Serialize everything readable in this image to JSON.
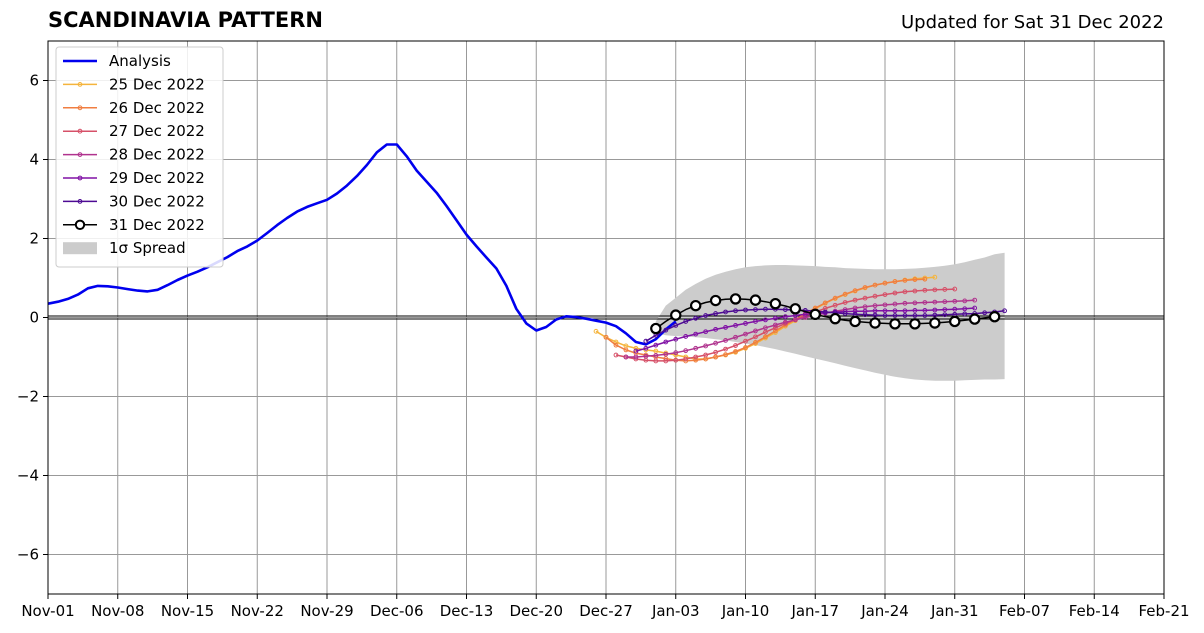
{
  "header": {
    "title": "SCANDINAVIA PATTERN",
    "subtitle": "Updated for Sat 31 Dec 2022"
  },
  "chart_data": {
    "type": "line",
    "xlim": [
      "2022-11-01",
      "2023-02-21"
    ],
    "ylim": [
      -7,
      7
    ],
    "grid": true,
    "legend_placement": "top-left",
    "x_ticks": [
      "2022-11-01",
      "2022-11-08",
      "2022-11-15",
      "2022-11-22",
      "2022-11-29",
      "2022-12-06",
      "2022-12-13",
      "2022-12-20",
      "2022-12-27",
      "2023-01-03",
      "2023-01-10",
      "2023-01-17",
      "2023-01-24",
      "2023-01-31",
      "2023-02-07",
      "2023-02-14",
      "2023-02-21"
    ],
    "x_tick_labels": [
      "Nov-01",
      "Nov-08",
      "Nov-15",
      "Nov-22",
      "Nov-29",
      "Dec-06",
      "Dec-13",
      "Dec-20",
      "Dec-27",
      "Jan-03",
      "Jan-10",
      "Jan-17",
      "Jan-24",
      "Jan-31",
      "Feb-07",
      "Feb-14",
      "Feb-21"
    ],
    "y_ticks": [
      -6,
      -4,
      -2,
      0,
      2,
      4,
      6
    ],
    "y_tick_labels": [
      "−6",
      "−4",
      "−2",
      "0",
      "2",
      "4",
      "6"
    ],
    "analysis": {
      "name": "Analysis",
      "color": "#0000ee",
      "start": "2022-11-01",
      "values": [
        0.35,
        0.4,
        0.47,
        0.58,
        0.74,
        0.8,
        0.79,
        0.76,
        0.72,
        0.68,
        0.66,
        0.7,
        0.82,
        0.95,
        1.06,
        1.16,
        1.27,
        1.4,
        1.53,
        1.68,
        1.8,
        1.95,
        2.14,
        2.34,
        2.52,
        2.68,
        2.8,
        2.89,
        2.98,
        3.14,
        3.34,
        3.58,
        3.86,
        4.18,
        4.38,
        4.38,
        4.08,
        3.72,
        3.44,
        3.16,
        2.82,
        2.46,
        2.1,
        1.8,
        1.52,
        1.24,
        0.8,
        0.22,
        -0.15,
        -0.33,
        -0.24,
        -0.05,
        0.03,
        0.01,
        -0.03,
        -0.08,
        -0.13,
        -0.22,
        -0.4,
        -0.62,
        -0.68,
        -0.55,
        -0.3,
        -0.1
      ]
    },
    "forecasts": [
      {
        "name": "25 Dec 2022",
        "color": "#f5b43c",
        "start": "2022-12-26",
        "values": [
          -0.35,
          -0.5,
          -0.62,
          -0.72,
          -0.78,
          -0.82,
          -0.85,
          -0.9,
          -0.95,
          -1.0,
          -1.05,
          -1.05,
          -1.0,
          -0.95,
          -0.88,
          -0.78,
          -0.66,
          -0.52,
          -0.38,
          -0.22,
          -0.08,
          0.08,
          0.22,
          0.36,
          0.48,
          0.58,
          0.67,
          0.75,
          0.82,
          0.87,
          0.91,
          0.95,
          0.98,
          1.0,
          1.02
        ]
      },
      {
        "name": "26 Dec 2022",
        "color": "#f07e41",
        "start": "2022-12-27",
        "values": [
          -0.5,
          -0.7,
          -0.82,
          -0.9,
          -0.95,
          -1.0,
          -1.04,
          -1.08,
          -1.1,
          -1.08,
          -1.05,
          -1.0,
          -0.94,
          -0.86,
          -0.76,
          -0.63,
          -0.49,
          -0.34,
          -0.19,
          -0.05,
          0.1,
          0.24,
          0.37,
          0.49,
          0.59,
          0.68,
          0.76,
          0.82,
          0.87,
          0.91,
          0.94,
          0.96,
          0.97
        ]
      },
      {
        "name": "27 Dec 2022",
        "color": "#d65068",
        "start": "2022-12-28",
        "values": [
          -0.95,
          -1.0,
          -1.05,
          -1.08,
          -1.1,
          -1.1,
          -1.08,
          -1.05,
          -1.0,
          -0.95,
          -0.88,
          -0.8,
          -0.71,
          -0.6,
          -0.49,
          -0.37,
          -0.26,
          -0.15,
          -0.05,
          0.05,
          0.14,
          0.23,
          0.31,
          0.38,
          0.44,
          0.49,
          0.54,
          0.58,
          0.62,
          0.65,
          0.67,
          0.69,
          0.7,
          0.71,
          0.72
        ]
      },
      {
        "name": "28 Dec 2022",
        "color": "#b0338e",
        "start": "2022-12-29",
        "values": [
          -1.0,
          -1.0,
          -0.98,
          -0.96,
          -0.93,
          -0.89,
          -0.84,
          -0.78,
          -0.72,
          -0.65,
          -0.58,
          -0.5,
          -0.42,
          -0.34,
          -0.26,
          -0.19,
          -0.12,
          -0.06,
          0.0,
          0.06,
          0.11,
          0.16,
          0.2,
          0.24,
          0.27,
          0.3,
          0.32,
          0.34,
          0.36,
          0.37,
          0.38,
          0.39,
          0.4,
          0.41,
          0.42,
          0.44
        ]
      },
      {
        "name": "29 Dec 2022",
        "color": "#8011a5",
        "start": "2022-12-30",
        "values": [
          -0.85,
          -0.78,
          -0.7,
          -0.62,
          -0.55,
          -0.48,
          -0.42,
          -0.36,
          -0.3,
          -0.25,
          -0.2,
          -0.15,
          -0.1,
          -0.06,
          -0.02,
          0.02,
          0.05,
          0.08,
          0.1,
          0.12,
          0.14,
          0.15,
          0.16,
          0.16,
          0.17,
          0.17,
          0.17,
          0.17,
          0.18,
          0.18,
          0.19,
          0.2,
          0.21,
          0.22,
          0.24
        ]
      },
      {
        "name": "30 Dec 2022",
        "color": "#4d0a93",
        "start": "2022-12-31",
        "values": [
          -0.6,
          -0.45,
          -0.32,
          -0.2,
          -0.1,
          -0.02,
          0.05,
          0.1,
          0.14,
          0.17,
          0.19,
          0.2,
          0.21,
          0.21,
          0.2,
          0.19,
          0.18,
          0.16,
          0.14,
          0.12,
          0.1,
          0.08,
          0.07,
          0.06,
          0.05,
          0.05,
          0.05,
          0.05,
          0.05,
          0.06,
          0.07,
          0.08,
          0.09,
          0.1,
          0.12,
          0.14,
          0.17
        ]
      }
    ],
    "current": {
      "name": "31 Dec 2022",
      "color": "#000000",
      "start": "2023-01-01",
      "values": [
        -0.28,
        -0.1,
        0.06,
        0.2,
        0.3,
        0.38,
        0.43,
        0.46,
        0.47,
        0.46,
        0.44,
        0.4,
        0.35,
        0.29,
        0.22,
        0.15,
        0.08,
        0.02,
        -0.03,
        -0.07,
        -0.1,
        -0.12,
        -0.14,
        -0.15,
        -0.16,
        -0.16,
        -0.16,
        -0.15,
        -0.14,
        -0.12,
        -0.1,
        -0.07,
        -0.04,
        -0.01,
        0.02
      ]
    },
    "spread": {
      "name": "1σ Spread",
      "color": "#cccccc",
      "start": "2023-01-01",
      "upper": [
        -0.1,
        0.3,
        0.5,
        0.7,
        0.85,
        0.98,
        1.08,
        1.16,
        1.22,
        1.27,
        1.3,
        1.32,
        1.33,
        1.33,
        1.32,
        1.31,
        1.3,
        1.28,
        1.27,
        1.25,
        1.24,
        1.23,
        1.22,
        1.22,
        1.22,
        1.23,
        1.24,
        1.26,
        1.28,
        1.31,
        1.35,
        1.4,
        1.46,
        1.52,
        1.6,
        1.64
      ],
      "lower": [
        -0.4,
        -0.45,
        -0.47,
        -0.48,
        -0.5,
        -0.52,
        -0.55,
        -0.58,
        -0.62,
        -0.66,
        -0.7,
        -0.75,
        -0.8,
        -0.86,
        -0.92,
        -0.98,
        -1.04,
        -1.1,
        -1.16,
        -1.22,
        -1.28,
        -1.34,
        -1.4,
        -1.45,
        -1.5,
        -1.54,
        -1.57,
        -1.59,
        -1.6,
        -1.6,
        -1.6,
        -1.59,
        -1.58,
        -1.57,
        -1.57,
        -1.56
      ]
    }
  }
}
